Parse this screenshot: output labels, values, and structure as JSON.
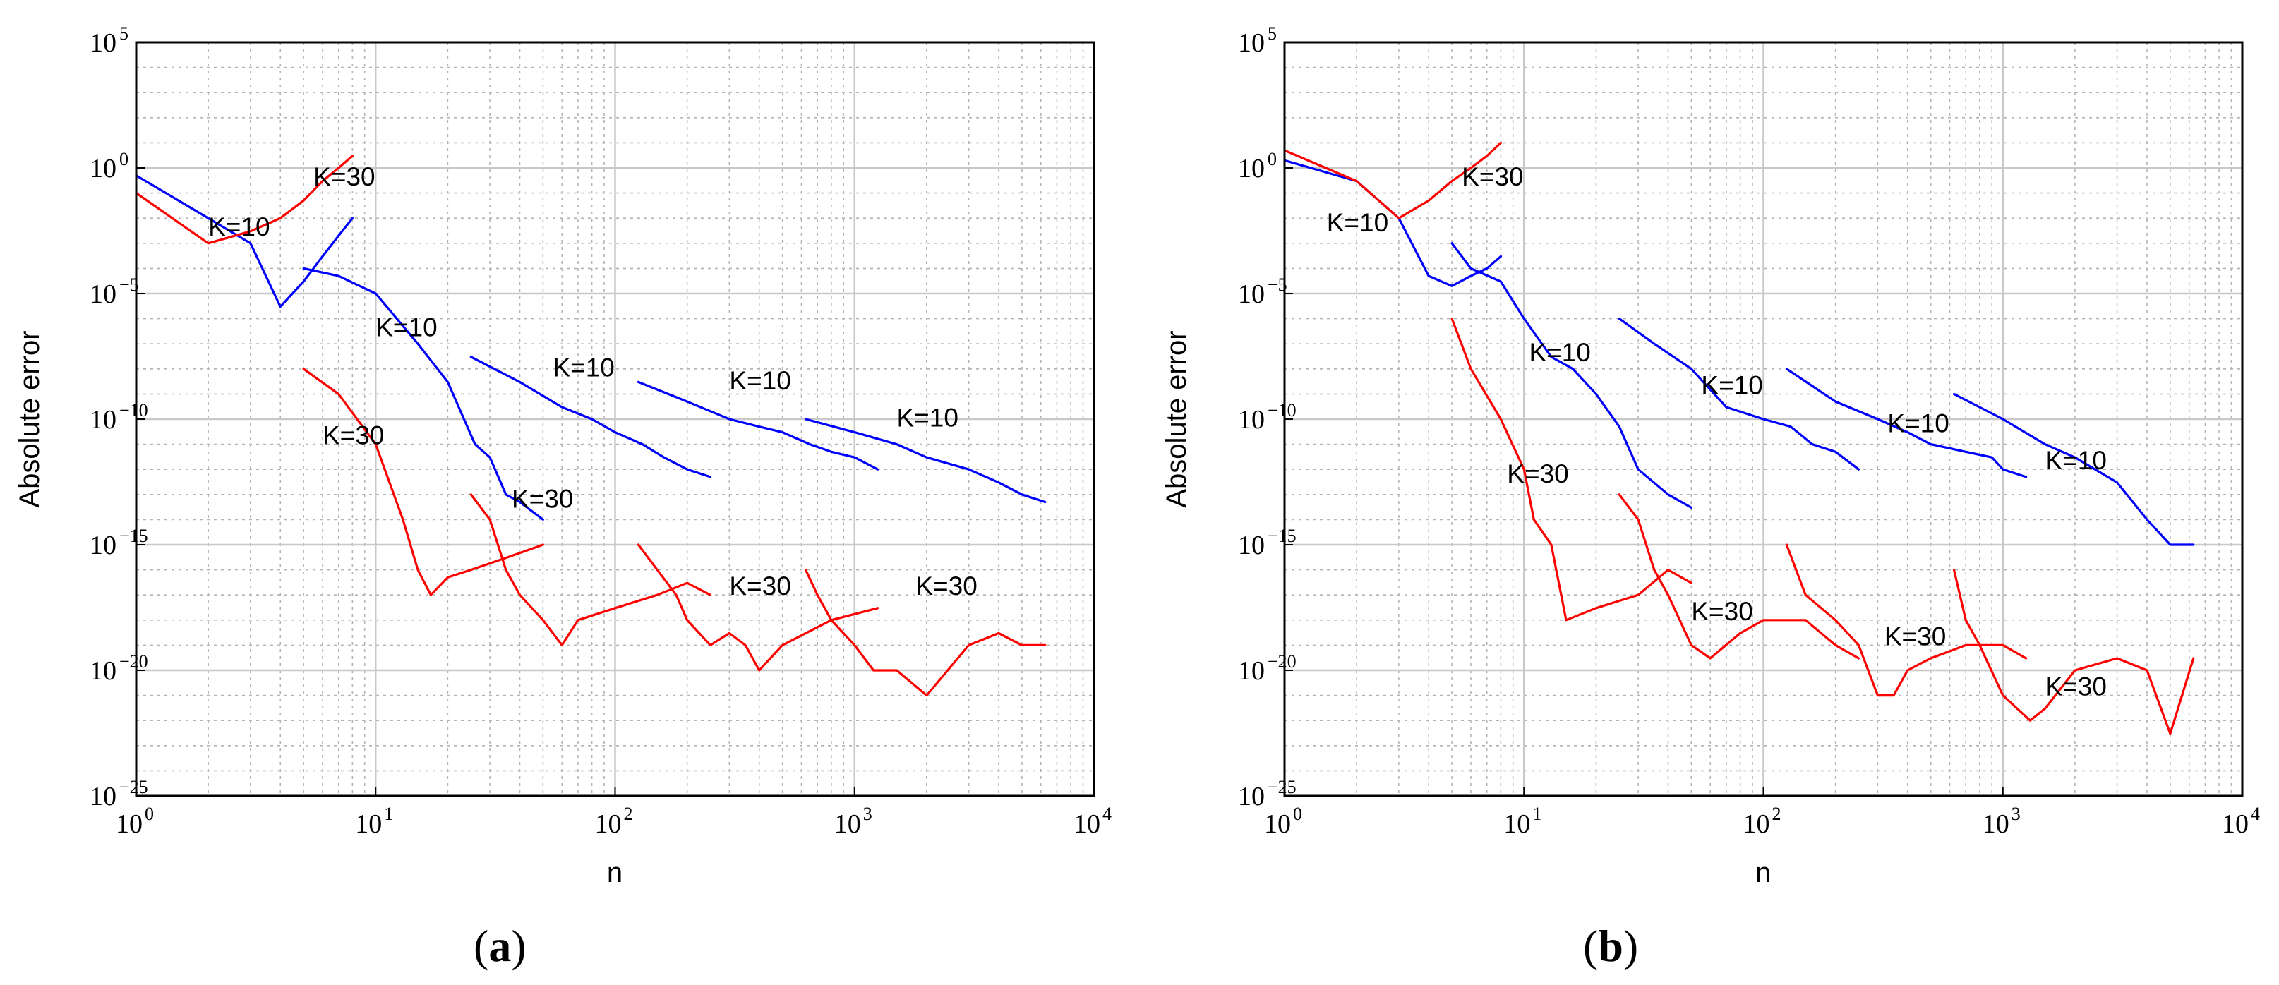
{
  "chart_data": [
    {
      "type": "line",
      "panel_label": "a",
      "xlabel": "n",
      "ylabel": "Absolute error",
      "xscale": "log",
      "yscale": "log",
      "xlim": [
        1,
        10000
      ],
      "ylim": [
        1e-25,
        100000.0
      ],
      "grid": true,
      "x_ticks": [
        {
          "base": "10",
          "exp": "0"
        },
        {
          "base": "10",
          "exp": "1"
        },
        {
          "base": "10",
          "exp": "2"
        },
        {
          "base": "10",
          "exp": "3"
        },
        {
          "base": "10",
          "exp": "4"
        }
      ],
      "y_ticks": [
        {
          "base": "10",
          "exp": "5"
        },
        {
          "base": "10",
          "exp": "0"
        },
        {
          "base": "10",
          "exp": "−5"
        },
        {
          "base": "10",
          "exp": "−10"
        },
        {
          "base": "10",
          "exp": "−15"
        },
        {
          "base": "10",
          "exp": "−20"
        },
        {
          "base": "10",
          "exp": "−25"
        }
      ],
      "series": [
        {
          "name": "K=10 curve 1",
          "color": "#0000ff",
          "x": [
            1,
            2,
            3,
            4,
            5,
            6,
            7,
            8
          ],
          "y": [
            0.5,
            0.01,
            0.001,
            3e-06,
            3e-05,
            0.0003,
            0.002,
            0.01
          ]
        },
        {
          "name": "K=10 curve 2",
          "color": "#0000ff",
          "x": [
            5,
            7,
            10,
            15,
            20,
            26,
            30,
            35,
            40,
            50
          ],
          "y": [
            0.0001,
            5e-05,
            1e-05,
            1e-07,
            3e-09,
            1e-11,
            3e-12,
            1e-13,
            5e-14,
            1e-14
          ]
        },
        {
          "name": "K=10 curve 3",
          "color": "#0000ff",
          "x": [
            25,
            40,
            60,
            80,
            100,
            130,
            160,
            200,
            250
          ],
          "y": [
            3e-08,
            3e-09,
            3e-10,
            1e-10,
            3e-11,
            1e-11,
            3e-12,
            1e-12,
            5e-13
          ]
        },
        {
          "name": "K=10 curve 4",
          "color": "#0000ff",
          "x": [
            125,
            200,
            300,
            400,
            500,
            650,
            800,
            1000,
            1250
          ],
          "y": [
            3e-09,
            5e-10,
            1e-10,
            5e-11,
            3e-11,
            1e-11,
            5e-12,
            3e-12,
            1e-12
          ]
        },
        {
          "name": "K=10 curve 5",
          "color": "#0000ff",
          "x": [
            625,
            1000,
            1500,
            2000,
            3000,
            4000,
            5000,
            6250
          ],
          "y": [
            1e-10,
            3e-11,
            1e-11,
            3e-12,
            1e-12,
            3e-13,
            1e-13,
            5e-14
          ]
        },
        {
          "name": "K=30 curve 1",
          "color": "#ff0000",
          "x": [
            1,
            2,
            3,
            4,
            5,
            6,
            7,
            8
          ],
          "y": [
            0.1,
            0.001,
            0.003,
            0.01,
            0.05,
            0.3,
            1,
            3
          ]
        },
        {
          "name": "K=30 curve 2",
          "color": "#ff0000",
          "x": [
            5,
            7,
            10,
            13,
            15,
            17,
            20,
            25,
            35,
            50
          ],
          "y": [
            1e-08,
            1e-09,
            1e-11,
            1e-14,
            1e-16,
            1e-17,
            5e-17,
            1e-16,
            3e-16,
            1e-15
          ]
        },
        {
          "name": "K=30 curve 3",
          "color": "#ff0000",
          "x": [
            25,
            30,
            35,
            40,
            50,
            60,
            70,
            100,
            150,
            200,
            250
          ],
          "y": [
            1e-13,
            1e-14,
            1e-16,
            1e-17,
            1e-18,
            1e-19,
            1e-18,
            3e-18,
            1e-17,
            3e-17,
            1e-17
          ]
        },
        {
          "name": "K=30 curve 4",
          "color": "#ff0000",
          "x": [
            125,
            150,
            180,
            200,
            250,
            300,
            350,
            400,
            500,
            800,
            1250
          ],
          "y": [
            1e-15,
            1e-16,
            1e-17,
            1e-18,
            1e-19,
            3e-19,
            1e-19,
            1e-20,
            1e-19,
            1e-18,
            3e-18
          ]
        },
        {
          "name": "K=30 curve 5",
          "color": "#ff0000",
          "x": [
            625,
            700,
            800,
            1000,
            1200,
            1500,
            2000,
            3000,
            4000,
            5000,
            6250
          ],
          "y": [
            1e-16,
            1e-17,
            1e-18,
            1e-19,
            1e-20,
            1e-20,
            1e-21,
            1e-19,
            3e-19,
            1e-19,
            1e-19
          ]
        }
      ],
      "annotations": [
        {
          "text": "K=30",
          "x": 5.5,
          "y": 0.2
        },
        {
          "text": "K=10",
          "x": 2,
          "y": 0.002
        },
        {
          "text": "K=10",
          "x": 10,
          "y": 2e-07
        },
        {
          "text": "K=10",
          "x": 55,
          "y": 5e-09
        },
        {
          "text": "K=10",
          "x": 300,
          "y": 1.5e-09
        },
        {
          "text": "K=10",
          "x": 1500,
          "y": 5e-11
        },
        {
          "text": "K=30",
          "x": 6,
          "y": 1e-11
        },
        {
          "text": "K=30",
          "x": 37,
          "y": 3e-14
        },
        {
          "text": "K=30",
          "x": 300,
          "y": 1e-17
        },
        {
          "text": "K=30",
          "x": 1800,
          "y": 1e-17
        }
      ]
    },
    {
      "type": "line",
      "panel_label": "b",
      "xlabel": "n",
      "ylabel": "Absolute error",
      "xscale": "log",
      "yscale": "log",
      "xlim": [
        1,
        10000
      ],
      "ylim": [
        1e-25,
        100000.0
      ],
      "grid": true,
      "x_ticks": [
        {
          "base": "10",
          "exp": "0"
        },
        {
          "base": "10",
          "exp": "1"
        },
        {
          "base": "10",
          "exp": "2"
        },
        {
          "base": "10",
          "exp": "3"
        },
        {
          "base": "10",
          "exp": "4"
        }
      ],
      "y_ticks": [
        {
          "base": "10",
          "exp": "5"
        },
        {
          "base": "10",
          "exp": "0"
        },
        {
          "base": "10",
          "exp": "−5"
        },
        {
          "base": "10",
          "exp": "−10"
        },
        {
          "base": "10",
          "exp": "−15"
        },
        {
          "base": "10",
          "exp": "−20"
        },
        {
          "base": "10",
          "exp": "−25"
        }
      ],
      "series": [
        {
          "name": "K=10 curve 1",
          "color": "#0000ff",
          "x": [
            1,
            2,
            3,
            4,
            5,
            6,
            7,
            8
          ],
          "y": [
            2,
            0.3,
            0.01,
            5e-05,
            2e-05,
            5e-05,
            0.0001,
            0.0003
          ]
        },
        {
          "name": "K=10 curve 2",
          "color": "#0000ff",
          "x": [
            5,
            6,
            8,
            10,
            13,
            16,
            20,
            25,
            30,
            40,
            50
          ],
          "y": [
            0.001,
            0.0001,
            3e-05,
            1e-06,
            3e-08,
            1e-08,
            1e-09,
            5e-11,
            1e-12,
            1e-13,
            3e-14
          ]
        },
        {
          "name": "K=10 curve 3",
          "color": "#0000ff",
          "x": [
            25,
            35,
            50,
            70,
            100,
            130,
            160,
            200,
            250
          ],
          "y": [
            1e-06,
            1e-07,
            1e-08,
            3e-10,
            1e-10,
            5e-11,
            1e-11,
            5e-12,
            1e-12
          ]
        },
        {
          "name": "K=10 curve 4",
          "color": "#0000ff",
          "x": [
            125,
            200,
            300,
            400,
            500,
            700,
            900,
            1000,
            1250
          ],
          "y": [
            1e-08,
            5e-10,
            1e-10,
            3e-11,
            1e-11,
            5e-12,
            3e-12,
            1e-12,
            5e-13
          ]
        },
        {
          "name": "K=10 curve 5",
          "color": "#0000ff",
          "x": [
            625,
            1000,
            1500,
            2000,
            3000,
            4000,
            5000,
            6250
          ],
          "y": [
            1e-09,
            1e-10,
            1e-11,
            3e-12,
            3e-13,
            1e-14,
            1e-15,
            1e-15
          ]
        },
        {
          "name": "K=30 curve 1",
          "color": "#ff0000",
          "x": [
            1,
            2,
            3,
            4,
            5,
            6,
            7,
            8
          ],
          "y": [
            5,
            0.3,
            0.01,
            0.05,
            0.3,
            1,
            3,
            10
          ]
        },
        {
          "name": "K=30 curve 2",
          "color": "#ff0000",
          "x": [
            5,
            6,
            8,
            10,
            11,
            13,
            15,
            20,
            30,
            40,
            50
          ],
          "y": [
            1e-06,
            1e-08,
            1e-10,
            1e-12,
            1e-14,
            1e-15,
            1e-18,
            3e-18,
            1e-17,
            1e-16,
            3e-17
          ]
        },
        {
          "name": "K=30 curve 3",
          "color": "#ff0000",
          "x": [
            25,
            30,
            35,
            40,
            50,
            60,
            80,
            100,
            150,
            200,
            250
          ],
          "y": [
            1e-13,
            1e-14,
            1e-16,
            1e-17,
            1e-19,
            3e-20,
            3e-19,
            1e-18,
            1e-18,
            1e-19,
            3e-20
          ]
        },
        {
          "name": "K=30 curve 4",
          "color": "#ff0000",
          "x": [
            125,
            150,
            200,
            250,
            300,
            350,
            400,
            500,
            700,
            1000,
            1250
          ],
          "y": [
            1e-15,
            1e-17,
            1e-18,
            1e-19,
            1e-21,
            1e-21,
            1e-20,
            3e-20,
            1e-19,
            1e-19,
            3e-20
          ]
        },
        {
          "name": "K=30 curve 5",
          "color": "#ff0000",
          "x": [
            625,
            700,
            800,
            1000,
            1300,
            1500,
            2000,
            3000,
            4000,
            5000,
            6250
          ],
          "y": [
            1e-16,
            1e-18,
            1e-19,
            1e-21,
            1e-22,
            3e-22,
            1e-20,
            3e-20,
            1e-20,
            3e-23,
            3e-20
          ]
        }
      ],
      "annotations": [
        {
          "text": "K=30",
          "x": 5.5,
          "y": 0.2
        },
        {
          "text": "K=10",
          "x": 1.5,
          "y": 0.003
        },
        {
          "text": "K=10",
          "x": 10.5,
          "y": 2e-08
        },
        {
          "text": "K=10",
          "x": 55,
          "y": 1e-09
        },
        {
          "text": "K=10",
          "x": 330,
          "y": 3e-11
        },
        {
          "text": "K=10",
          "x": 1500,
          "y": 1e-12
        },
        {
          "text": "K=30",
          "x": 8.5,
          "y": 3e-13
        },
        {
          "text": "K=30",
          "x": 50,
          "y": 1e-18
        },
        {
          "text": "K=30",
          "x": 320,
          "y": 1e-19
        },
        {
          "text": "K=30",
          "x": 1500,
          "y": 1e-21
        }
      ]
    }
  ]
}
